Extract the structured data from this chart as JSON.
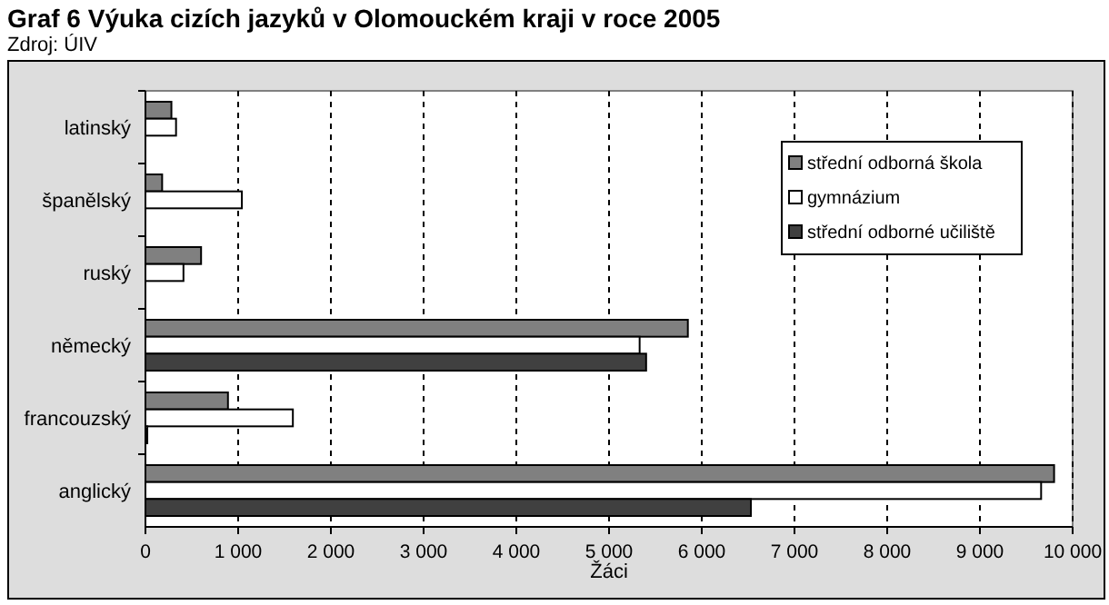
{
  "chart_data": {
    "type": "bar",
    "orientation": "horizontal",
    "title": "Graf 6 Výuka cizích jazyků v Olomouckém kraji v roce 2005",
    "subtitle": "Zdroj: ÚIV",
    "xlabel": "Žáci",
    "categories": [
      "latinský",
      "španělský",
      "ruský",
      "německý",
      "francouzský",
      "anglický"
    ],
    "series": [
      {
        "name": "střední odborná škola",
        "color": "#808080",
        "values": [
          280,
          180,
          600,
          5850,
          890,
          9800
        ]
      },
      {
        "name": "gymnázium",
        "color": "#ffffff",
        "values": [
          330,
          1040,
          410,
          5330,
          1590,
          9660
        ]
      },
      {
        "name": "střední odborné učiliště",
        "color": "#404040",
        "values": [
          null,
          null,
          null,
          5400,
          20,
          6530
        ]
      }
    ],
    "xlim": [
      0,
      10000
    ],
    "xticks": [
      0,
      {
        "value": 1000,
        "label": "1 000"
      },
      {
        "value": 2000,
        "label": "2 000"
      },
      {
        "value": 3000,
        "label": "3 000"
      },
      {
        "value": 4000,
        "label": "4 000"
      },
      {
        "value": 5000,
        "label": "5 000"
      },
      {
        "value": 6000,
        "label": "6 000"
      },
      {
        "value": 7000,
        "label": "7 000"
      },
      {
        "value": 8000,
        "label": "8 000"
      },
      {
        "value": 9000,
        "label": "9 000"
      },
      {
        "value": 10000,
        "label": "10 000"
      }
    ],
    "grid": "x",
    "legend": "right"
  }
}
